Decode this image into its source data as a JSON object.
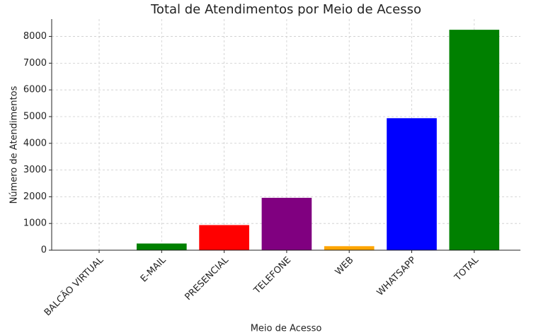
{
  "chart_data": {
    "type": "bar",
    "title": "Total de Atendimentos por Meio de Acesso",
    "x_label": "Meio de Acesso",
    "y_label": "Número de Atendimentos",
    "categories": [
      "BALCÃO VIRTUAL",
      "E-MAIL",
      "PRESENCIAL",
      "TELEFONE",
      "WEB",
      "WHATSAPP",
      "TOTAL"
    ],
    "values": [
      10,
      250,
      940,
      1960,
      150,
      4940,
      8250
    ],
    "colors": [
      "#008000",
      "#008000",
      "#ff0000",
      "#800080",
      "#ffa500",
      "#0000ff",
      "#008000"
    ],
    "ylim": [
      0,
      8650
    ],
    "yticks": [
      0,
      1000,
      2000,
      3000,
      4000,
      5000,
      6000,
      7000,
      8000
    ],
    "grid": true
  }
}
